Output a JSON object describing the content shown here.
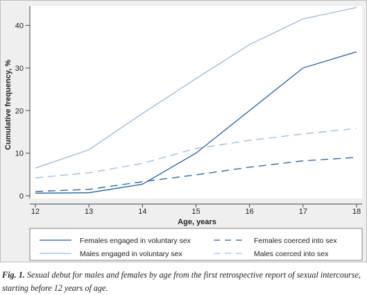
{
  "chart_data": {
    "type": "line",
    "title": "",
    "xlabel": "Age, years",
    "ylabel": "Cumulative frequency, %",
    "x": [
      12,
      13,
      14,
      15,
      16,
      17,
      18
    ],
    "xticks": [
      "12",
      "13",
      "14",
      "15",
      "16",
      "17",
      "18"
    ],
    "yticks": [
      "0",
      "10",
      "20",
      "30",
      "40"
    ],
    "ylim": [
      0,
      44
    ],
    "xlim": [
      12,
      18
    ],
    "grid": false,
    "legend_position": "bottom",
    "series": [
      {
        "name": "Females engaged in voluntary sex",
        "values": [
          0.6,
          0.7,
          2.7,
          10.0,
          20.0,
          30.0,
          33.8
        ],
        "color": "#1f5fa5",
        "style": "solid"
      },
      {
        "name": "Females coerced into sex",
        "values": [
          1.0,
          1.5,
          3.3,
          4.9,
          6.7,
          8.2,
          9.0
        ],
        "color": "#1f5fa5",
        "style": "dashed"
      },
      {
        "name": "Males engaged in voluntary sex",
        "values": [
          6.5,
          10.8,
          19.3,
          27.5,
          35.5,
          41.5,
          44.2
        ],
        "color": "#9ab9d9",
        "style": "solid"
      },
      {
        "name": "Males coerced into sex",
        "values": [
          4.2,
          5.4,
          7.6,
          11.1,
          13.0,
          14.5,
          15.8
        ],
        "color": "#9ab9d9",
        "style": "dashed"
      }
    ]
  },
  "caption": {
    "label": "Fig. 1.",
    "text": " Sexual debut for males and females by age from the first retrospective report of sexual intercourse, starting before 12 years of age."
  }
}
